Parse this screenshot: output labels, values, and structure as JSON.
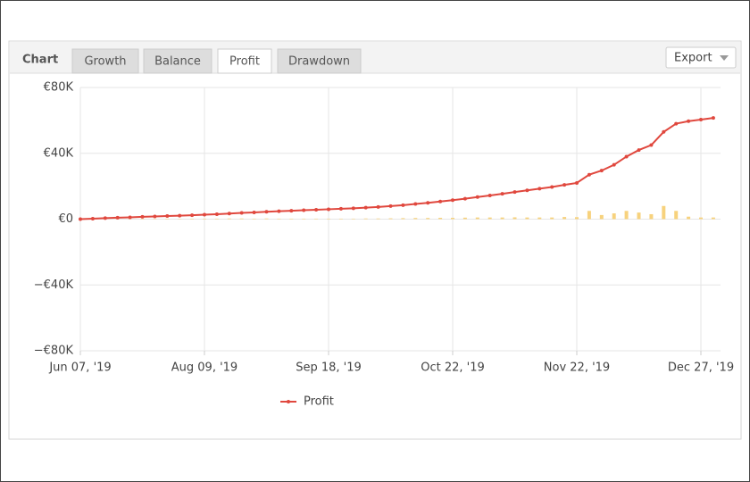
{
  "header": {
    "label": "Chart",
    "tabs": [
      "Growth",
      "Balance",
      "Profit",
      "Drawdown"
    ],
    "active_tab": 2,
    "export": "Export"
  },
  "chart_data": {
    "type": "line",
    "categories": [
      "Jun 07, '19",
      null,
      null,
      null,
      null,
      null,
      null,
      null,
      null,
      null,
      "Aug 09, '19",
      null,
      null,
      null,
      null,
      null,
      null,
      null,
      null,
      null,
      "Sep 18, '19",
      null,
      null,
      null,
      null,
      null,
      null,
      null,
      null,
      null,
      "Oct 22, '19",
      null,
      null,
      null,
      null,
      null,
      null,
      null,
      null,
      null,
      "Nov 22, '19",
      null,
      null,
      null,
      null,
      null,
      null,
      null,
      null,
      null,
      "Dec 27, '19",
      null
    ],
    "series": [
      {
        "name": "Profit",
        "color": "#e0483e",
        "values": [
          0,
          300,
          600,
          900,
          1100,
          1400,
          1600,
          1900,
          2100,
          2400,
          2700,
          3000,
          3400,
          3800,
          4100,
          4500,
          4800,
          5100,
          5400,
          5700,
          6000,
          6300,
          6600,
          7000,
          7400,
          7900,
          8500,
          9200,
          9900,
          10700,
          11500,
          12400,
          13400,
          14400,
          15400,
          16500,
          17500,
          18500,
          19500,
          20800,
          22000,
          27000,
          29500,
          33000,
          38000,
          42000,
          45000,
          53000,
          58000,
          59500,
          60500,
          61500
        ]
      },
      {
        "type": "bar",
        "color": "#f7d27d",
        "values": [
          0,
          300,
          300,
          300,
          200,
          300,
          200,
          300,
          200,
          300,
          300,
          300,
          400,
          400,
          300,
          400,
          300,
          300,
          300,
          300,
          300,
          300,
          300,
          400,
          400,
          500,
          600,
          700,
          700,
          800,
          800,
          900,
          1000,
          1000,
          1000,
          1100,
          1000,
          1000,
          1000,
          1300,
          1200,
          5000,
          2500,
          3500,
          5000,
          4000,
          3000,
          8000,
          5000,
          1500,
          1000,
          1000
        ]
      }
    ],
    "ylim": [
      -80000,
      80000
    ],
    "yticks": [
      {
        "value": -80000,
        "label": "−€80K"
      },
      {
        "value": -40000,
        "label": "−€40K"
      },
      {
        "value": 0,
        "label": "€0"
      },
      {
        "value": 40000,
        "label": "€40K"
      },
      {
        "value": 80000,
        "label": "€80K"
      }
    ],
    "grid": true,
    "legend": "bottom"
  }
}
